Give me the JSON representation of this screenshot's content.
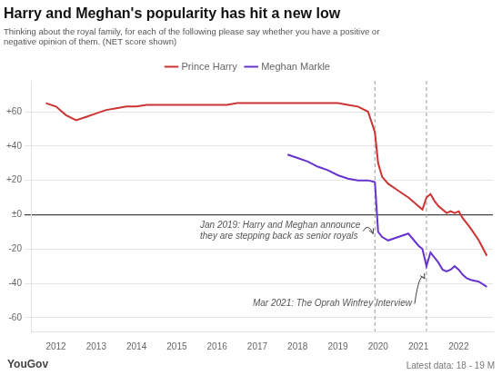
{
  "chart_data": {
    "type": "line",
    "title": "Harry and Meghan's popularity has hit a new low",
    "subtitle": "Thinking about the royal family, for each of the following please say whether you have a positive or\nnegative opinion of them. (NET score shown)",
    "footer": [
      "YouGov",
      "Latest data: 18 - 19 M"
    ],
    "annotations": [
      {
        "text": "Jan 2019: Harry and Meghan announce\nthey are stepping back as senior royals",
        "x": 2019.92
      },
      {
        "text": "Mar 2021: The Oprah Winfrey Interview",
        "x": 2021.2
      }
    ],
    "xlim": [
      2011.4,
      2022.85
    ],
    "xticks": [
      2012,
      2013,
      2014,
      2015,
      2016,
      2017,
      2018,
      2019,
      2020,
      2021,
      2022
    ],
    "ylim": [
      -68,
      78
    ],
    "yticks": [
      -60,
      -40,
      -20,
      {
        "value": 0,
        "label": "±0"
      },
      {
        "value": 20,
        "label": "+20"
      },
      {
        "value": 40,
        "label": "+40"
      },
      {
        "value": 60,
        "label": "+60"
      }
    ],
    "grid": true,
    "legend": "top",
    "series": [
      {
        "name": "Prince Harry",
        "color": "#cc3333",
        "x": [
          2011.75,
          2012.0,
          2012.25,
          2012.5,
          2012.75,
          2013.0,
          2013.25,
          2013.5,
          2013.75,
          2014.0,
          2014.25,
          2014.5,
          2014.75,
          2015.0,
          2015.25,
          2015.5,
          2015.75,
          2016.0,
          2016.25,
          2016.5,
          2016.75,
          2017.0,
          2017.25,
          2017.5,
          2017.75,
          2018.0,
          2018.25,
          2018.5,
          2018.75,
          2019.0,
          2019.25,
          2019.5,
          2019.75,
          2019.92,
          2020.0,
          2020.1,
          2020.25,
          2020.5,
          2020.75,
          2021.0,
          2021.1,
          2021.2,
          2021.3,
          2021.4,
          2021.5,
          2021.6,
          2021.7,
          2021.8,
          2021.9,
          2022.0,
          2022.1,
          2022.2,
          2022.3,
          2022.5,
          2022.7
        ],
        "values": [
          65,
          63,
          58,
          55,
          57,
          59,
          61,
          62,
          63,
          63,
          64,
          64,
          64,
          64,
          64,
          64,
          64,
          64,
          64,
          65,
          65,
          65,
          65,
          65,
          65,
          65,
          65,
          65,
          65,
          65,
          64,
          63,
          60,
          48,
          30,
          22,
          18,
          14,
          10,
          5,
          3,
          10,
          12,
          8,
          5,
          3,
          1,
          2,
          1,
          2,
          -2,
          -5,
          -8,
          -15,
          -24
        ]
      },
      {
        "name": "Meghan Markle",
        "color": "#6633cc",
        "x": [
          2017.75,
          2018.0,
          2018.25,
          2018.5,
          2018.75,
          2019.0,
          2019.25,
          2019.5,
          2019.75,
          2019.92,
          2020.0,
          2020.1,
          2020.25,
          2020.5,
          2020.75,
          2021.0,
          2021.1,
          2021.2,
          2021.3,
          2021.4,
          2021.5,
          2021.6,
          2021.7,
          2021.8,
          2021.9,
          2022.0,
          2022.1,
          2022.2,
          2022.3,
          2022.5,
          2022.7
        ],
        "values": [
          35,
          33,
          31,
          28,
          26,
          23,
          21,
          20,
          20,
          19,
          -10,
          -13,
          -15,
          -13,
          -11,
          -18,
          -20,
          -30,
          -22,
          -25,
          -28,
          -32,
          -33,
          -32,
          -30,
          -32,
          -35,
          -37,
          -38,
          -39,
          -42
        ]
      }
    ]
  }
}
